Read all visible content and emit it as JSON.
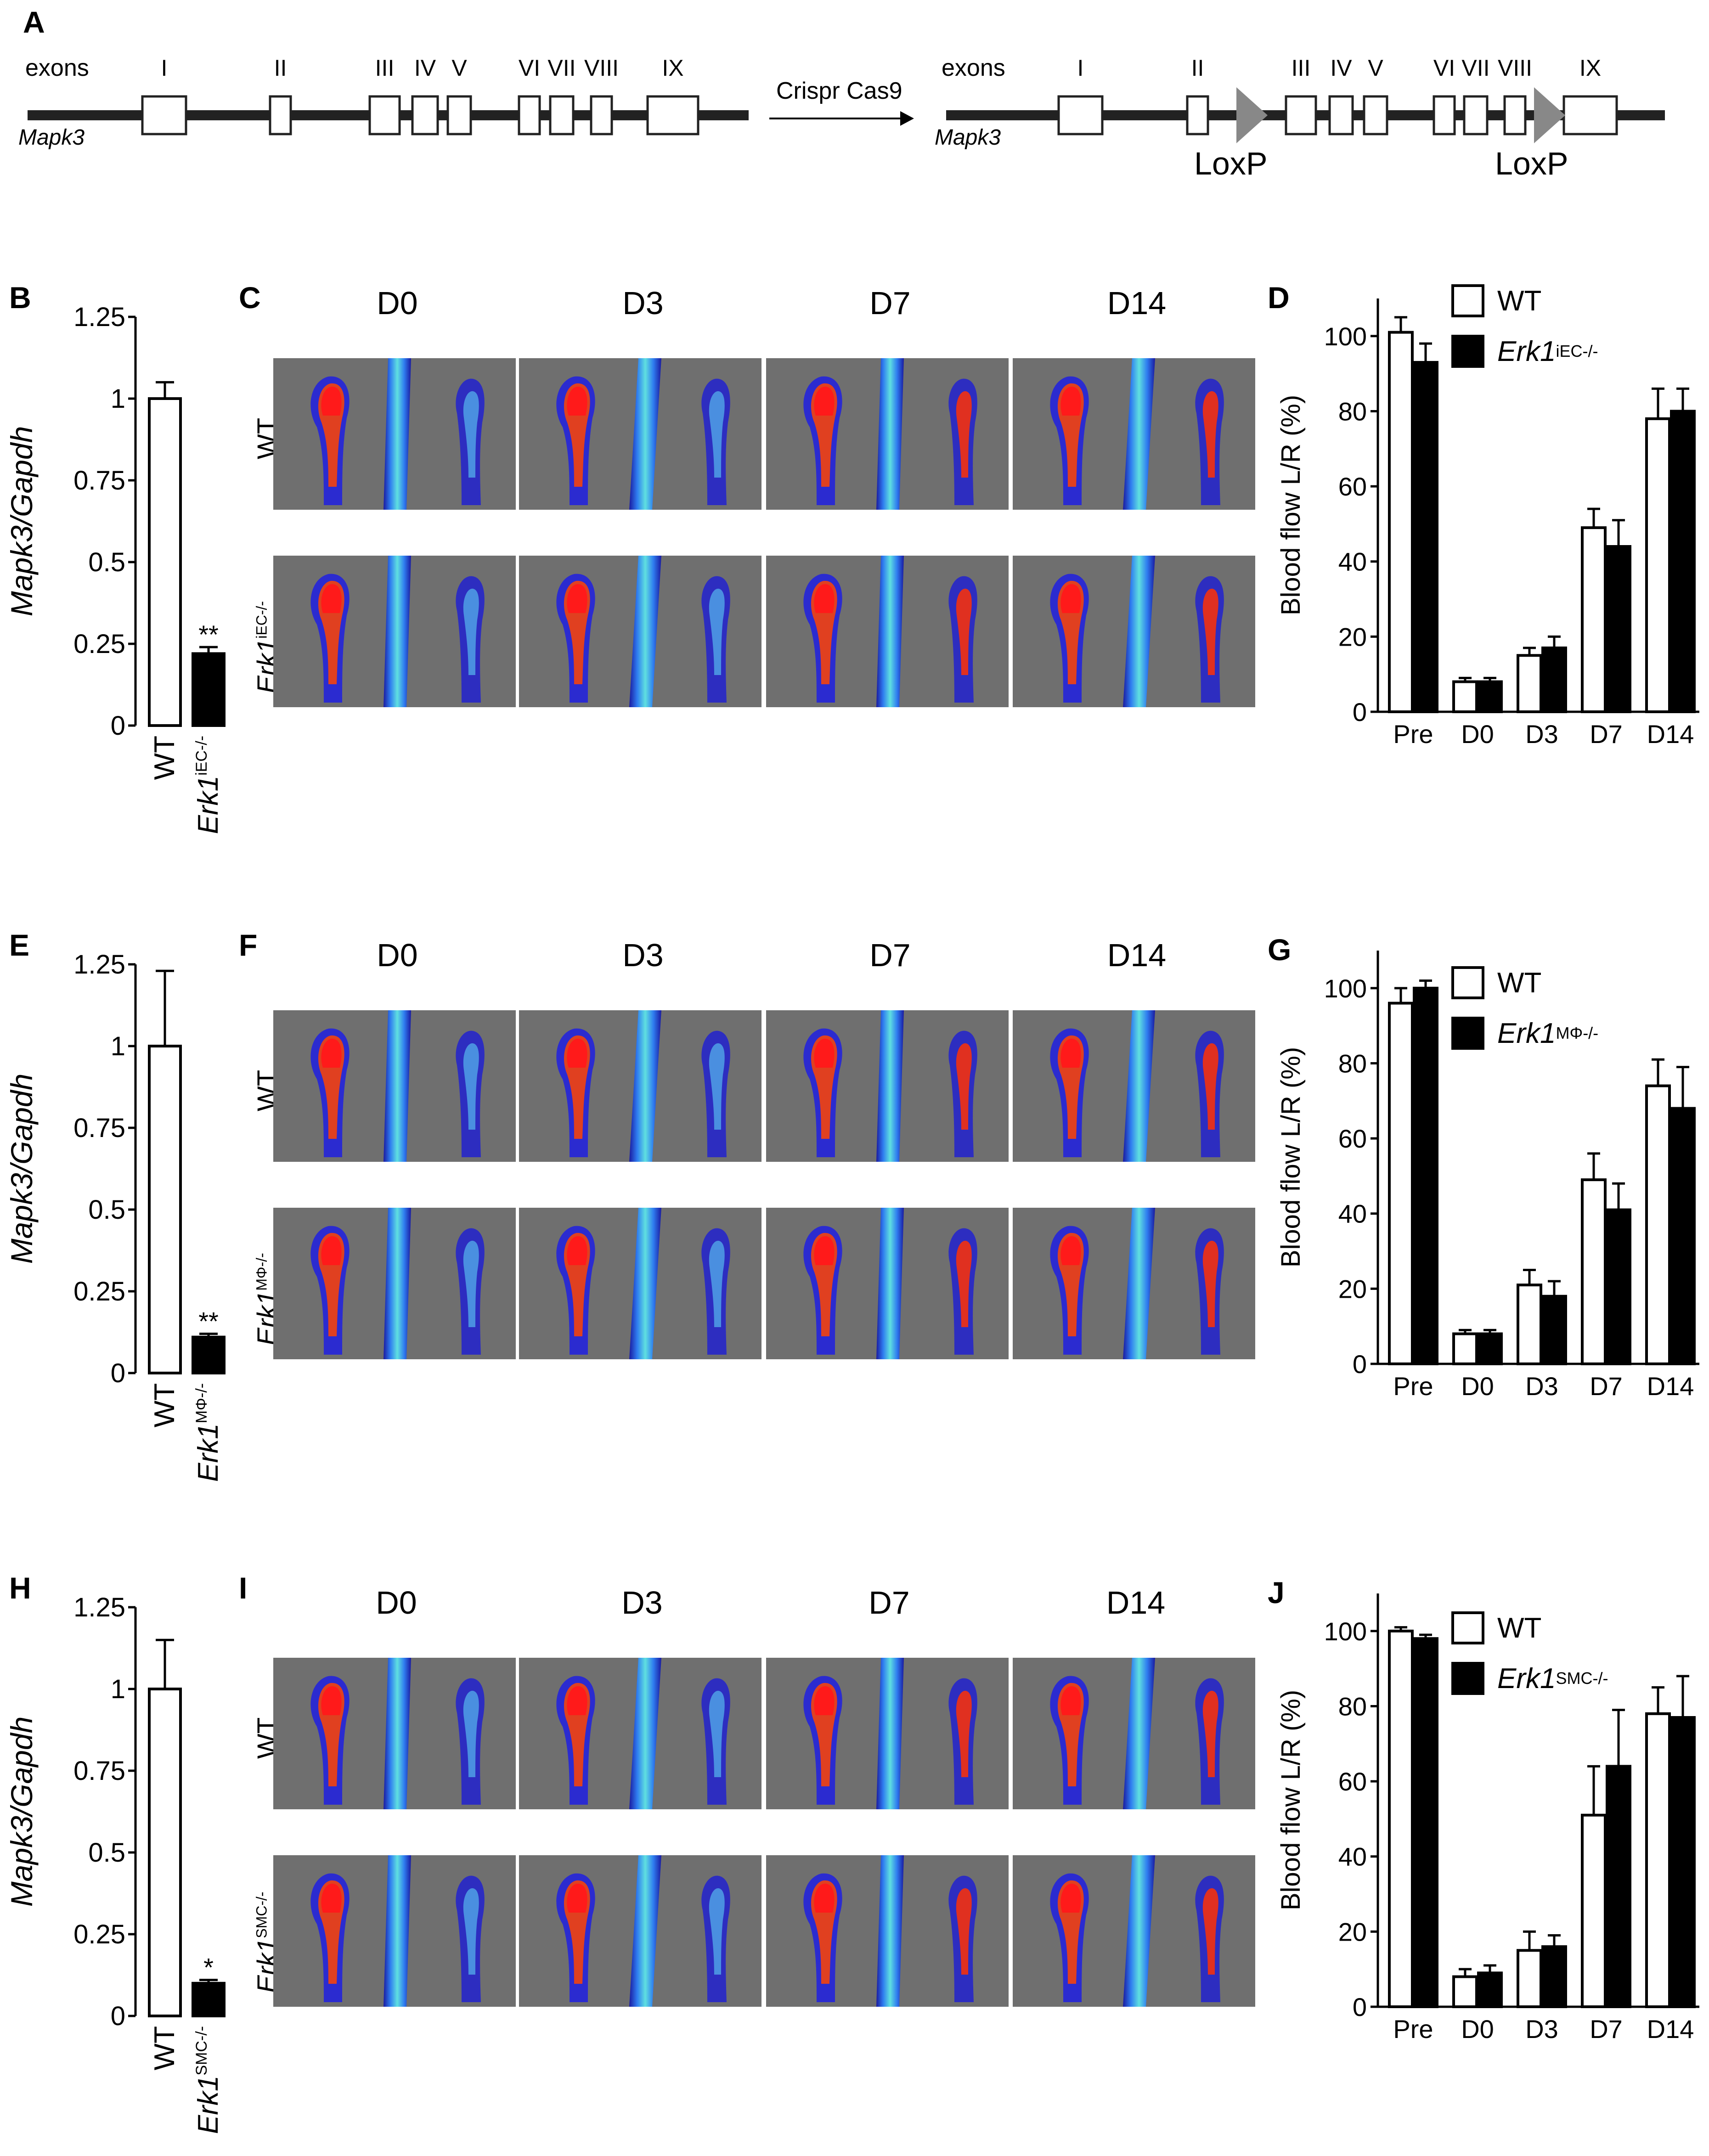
{
  "panels": {
    "A": "A",
    "B": "B",
    "C": "C",
    "D": "D",
    "E": "E",
    "F": "F",
    "G": "G",
    "H": "H",
    "I": "I",
    "J": "J"
  },
  "gene_diagram": {
    "exons_label": "exons",
    "gene_label": "Mapk3",
    "exon_names": [
      "I",
      "II",
      "III",
      "IV",
      "V",
      "VI",
      "VII",
      "VIII",
      "IX"
    ],
    "arrow_label": "Crispr Cas9",
    "loxp_label": "LoxP"
  },
  "timepoints": [
    "D0",
    "D3",
    "D7",
    "D14"
  ],
  "laser_rows": {
    "C": {
      "top": "WT",
      "bottom_main": "Erk1",
      "bottom_sup": "iEC-/-"
    },
    "F": {
      "top": "WT",
      "bottom_main": "Erk1",
      "bottom_sup": "MΦ-/-"
    },
    "I": {
      "top": "WT",
      "bottom_main": "Erk1",
      "bottom_sup": "SMC-/-"
    }
  },
  "legends": {
    "D": {
      "wt": "WT",
      "ko_main": "Erk1",
      "ko_sup": "iEC-/-"
    },
    "G": {
      "wt": "WT",
      "ko_main": "Erk1",
      "ko_sup": "MΦ-/-"
    },
    "J": {
      "wt": "WT",
      "ko_main": "Erk1",
      "ko_sup": "SMC-/-"
    }
  },
  "chart_data": [
    {
      "id": "B",
      "type": "bar",
      "ylabel": "Mapk3/Gapdh",
      "categories": [
        "WT",
        "Erk1"
      ],
      "category_sup": [
        "",
        "iEC-/-"
      ],
      "values": [
        1.0,
        0.22
      ],
      "errors": [
        0.05,
        0.02
      ],
      "significance": [
        "",
        "**"
      ],
      "yticks": [
        "0",
        "0.25",
        "0.5",
        "0.75",
        "1",
        "1.25"
      ],
      "ylim": [
        0,
        1.25
      ]
    },
    {
      "id": "D",
      "type": "bar",
      "ylabel": "Blood flow L/R (%)",
      "categories": [
        "Pre",
        "D0",
        "D3",
        "D7",
        "D14"
      ],
      "series": [
        {
          "name": "WT",
          "values": [
            101,
            8,
            15,
            49,
            78
          ],
          "errors": [
            4,
            1,
            2,
            5,
            8
          ]
        },
        {
          "name": "Erk1 iEC-/-",
          "values": [
            93,
            8,
            17,
            44,
            80
          ],
          "errors": [
            5,
            1,
            3,
            7,
            6
          ]
        }
      ],
      "yticks": [
        "0",
        "20",
        "40",
        "60",
        "80",
        "100"
      ],
      "ylim": [
        0,
        110
      ]
    },
    {
      "id": "E",
      "type": "bar",
      "ylabel": "Mapk3/Gapdh",
      "categories": [
        "WT",
        "Erk1"
      ],
      "category_sup": [
        "",
        "MΦ-/-"
      ],
      "values": [
        1.0,
        0.11
      ],
      "errors": [
        0.23,
        0.01
      ],
      "significance": [
        "",
        "**"
      ],
      "yticks": [
        "0",
        "0.25",
        "0.5",
        "0.75",
        "1",
        "1.25"
      ],
      "ylim": [
        0,
        1.25
      ]
    },
    {
      "id": "G",
      "type": "bar",
      "ylabel": "Blood flow L/R (%)",
      "categories": [
        "Pre",
        "D0",
        "D3",
        "D7",
        "D14"
      ],
      "series": [
        {
          "name": "WT",
          "values": [
            96,
            8,
            21,
            49,
            74
          ],
          "errors": [
            4,
            1,
            4,
            7,
            7
          ]
        },
        {
          "name": "Erk1 MΦ-/-",
          "values": [
            100,
            8,
            18,
            41,
            68
          ],
          "errors": [
            2,
            1,
            4,
            7,
            11
          ]
        }
      ],
      "yticks": [
        "0",
        "20",
        "40",
        "60",
        "80",
        "100"
      ],
      "ylim": [
        0,
        110
      ]
    },
    {
      "id": "H",
      "type": "bar",
      "ylabel": "Mapk3/Gapdh",
      "categories": [
        "WT",
        "Erk1"
      ],
      "category_sup": [
        "",
        "SMC-/-"
      ],
      "values": [
        1.0,
        0.1
      ],
      "errors": [
        0.15,
        0.01
      ],
      "significance": [
        "",
        "*"
      ],
      "yticks": [
        "0",
        "0.25",
        "0.5",
        "0.75",
        "1",
        "1.25"
      ],
      "ylim": [
        0,
        1.25
      ]
    },
    {
      "id": "J",
      "type": "bar",
      "ylabel": "Blood flow L/R (%)",
      "categories": [
        "Pre",
        "D0",
        "D3",
        "D7",
        "D14"
      ],
      "series": [
        {
          "name": "WT",
          "values": [
            100,
            8,
            15,
            51,
            78
          ],
          "errors": [
            1,
            2,
            5,
            13,
            7
          ]
        },
        {
          "name": "Erk1 SMC-/-",
          "values": [
            98,
            9,
            16,
            64,
            77
          ],
          "errors": [
            1,
            2,
            3,
            15,
            11
          ]
        }
      ],
      "yticks": [
        "0",
        "20",
        "40",
        "60",
        "80",
        "100"
      ],
      "ylim": [
        0,
        110
      ]
    }
  ]
}
